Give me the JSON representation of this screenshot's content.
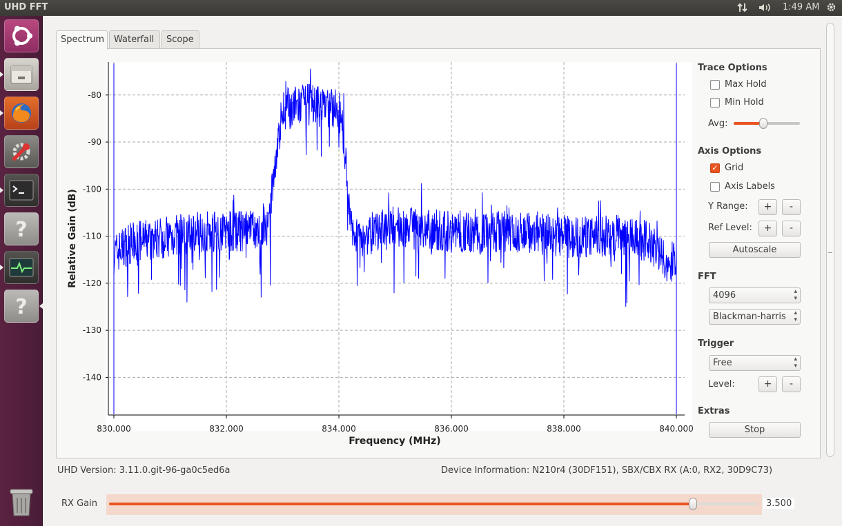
{
  "window": {
    "title": "UHD FFT"
  },
  "topbar": {
    "time": "1:49 AM"
  },
  "launcher": {
    "items": [
      {
        "name": "ubuntu-dash-icon"
      },
      {
        "name": "files-icon"
      },
      {
        "name": "firefox-icon"
      },
      {
        "name": "system-settings-icon"
      },
      {
        "name": "terminal-icon"
      },
      {
        "name": "unknown-app-icon"
      },
      {
        "name": "system-monitor-icon"
      },
      {
        "name": "unknown-app-icon"
      },
      {
        "name": "trash-icon"
      }
    ]
  },
  "tabs": [
    {
      "label": "Spectrum",
      "active": true
    },
    {
      "label": "Waterfall",
      "active": false
    },
    {
      "label": "Scope",
      "active": false
    }
  ],
  "controls": {
    "trace_options": {
      "title": "Trace Options",
      "max_hold": "Max Hold",
      "min_hold": "Min Hold",
      "avg": "Avg:",
      "avg_level": 0.45
    },
    "axis_options": {
      "title": "Axis Options",
      "grid": "Grid",
      "grid_checked": true,
      "axis_labels": "Axis Labels",
      "y_range": "Y Range:",
      "ref_level": "Ref Level:",
      "autoscale": "Autoscale",
      "plus": "+",
      "minus": "-"
    },
    "fft": {
      "title": "FFT",
      "size": "4096",
      "window": "Blackman-harris"
    },
    "trigger": {
      "title": "Trigger",
      "mode": "Free",
      "level": "Level:"
    },
    "extras": {
      "title": "Extras",
      "stop": "Stop"
    }
  },
  "status": {
    "uhd_version": "UHD Version: 3.11.0.git-96-ga0c5ed6a",
    "device_info": "Device Information: N210r4 (30DF151), SBX/CBX RX (A:0, RX2, 30D9C73)"
  },
  "rx_gain": {
    "label": "RX Gain",
    "value_text": "3.500",
    "level": 0.9
  },
  "chart_data": {
    "type": "line",
    "xlabel": "Frequency (MHz)",
    "ylabel": "Relative Gain (dB)",
    "xlim": [
      830.0,
      840.0
    ],
    "ylim": [
      -148,
      -73
    ],
    "x_ticks": [
      "830.000",
      "832.000",
      "834.000",
      "836.000",
      "838.000",
      "840.000"
    ],
    "y_ticks": [
      "-80",
      "-90",
      "-100",
      "-110",
      "-120",
      "-130",
      "-140"
    ],
    "x_tick_values": [
      830,
      832,
      834,
      836,
      838,
      840
    ],
    "y_tick_values": [
      -80,
      -90,
      -100,
      -110,
      -120,
      -130,
      -140
    ],
    "grid": true,
    "color": "#0000ff",
    "series": [
      {
        "x": [
          830.0,
          830.2,
          830.5,
          831.0,
          831.5,
          832.0,
          832.5,
          832.75,
          832.85,
          833.0,
          833.5,
          834.0,
          834.1,
          834.2,
          834.4,
          835.0,
          836.0,
          837.0,
          838.0,
          839.0,
          839.5,
          839.8,
          840.0
        ],
        "values": [
          -114,
          -112,
          -111,
          -110,
          -109,
          -109,
          -109,
          -109,
          -96,
          -83,
          -82,
          -83,
          -90,
          -108,
          -110,
          -108,
          -109,
          -109,
          -110,
          -110,
          -111,
          -115,
          -116
        ]
      }
    ]
  }
}
